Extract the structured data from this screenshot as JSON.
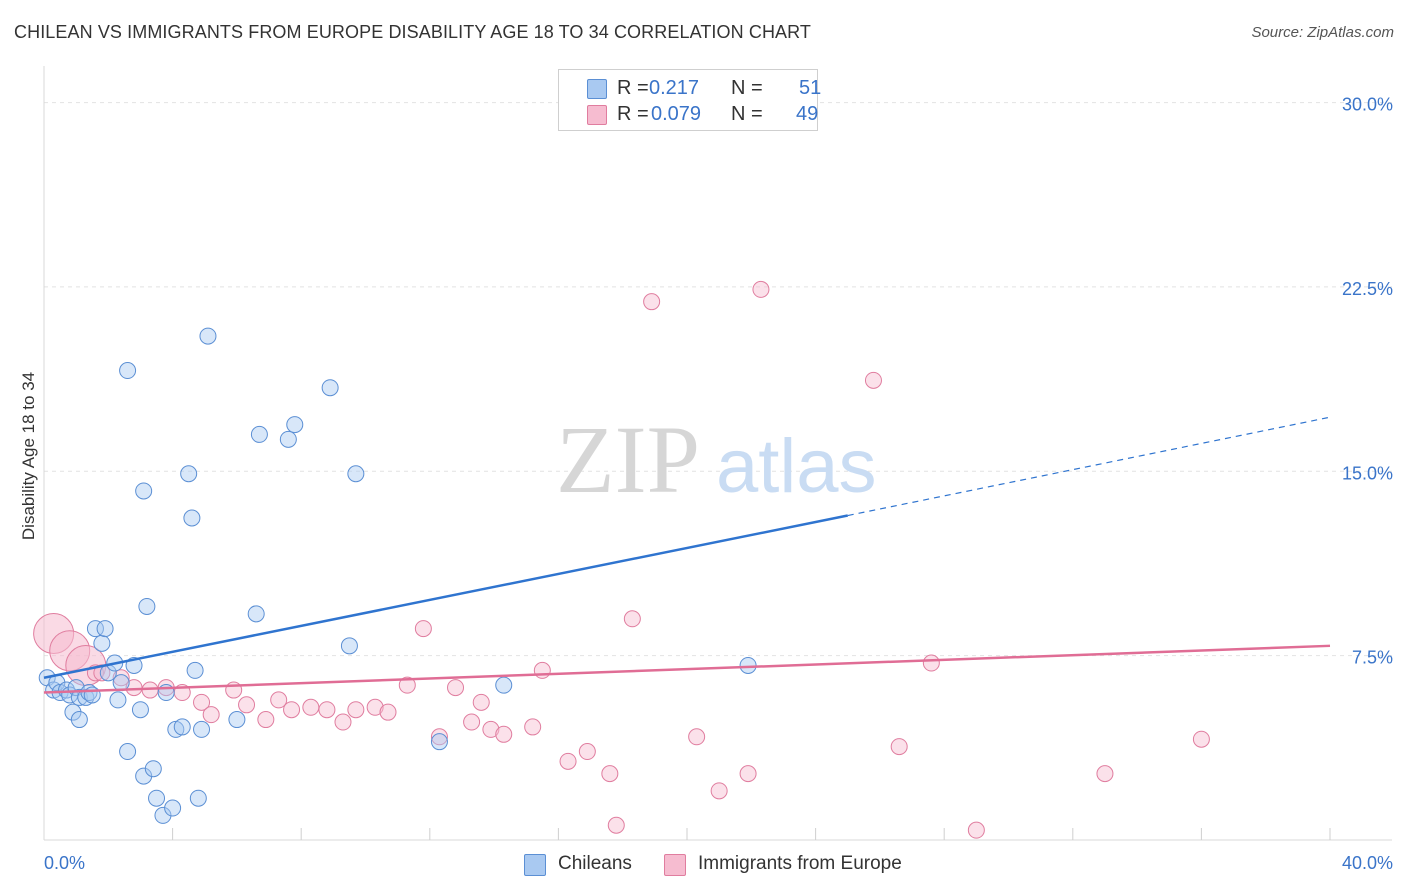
{
  "title": "CHILEAN VS IMMIGRANTS FROM EUROPE DISABILITY AGE 18 TO 34 CORRELATION CHART",
  "source": "Source: ZipAtlas.com",
  "watermark": {
    "zip": "ZIP",
    "atlas": "atlas"
  },
  "legend": {
    "series1": {
      "r_label": "R =",
      "r_value": "0.217",
      "n_label": "N =",
      "n_value": "51"
    },
    "series2": {
      "r_label": "R =",
      "r_value": "0.079",
      "n_label": "N =",
      "n_value": "49"
    }
  },
  "bottom_legend": {
    "series1": "Chileans",
    "series2": "Immigrants from Europe"
  },
  "colors": {
    "blue_fill": "#a9c9f1",
    "blue_stroke": "#5b8fd4",
    "blue_line": "#2f74cf",
    "pink_fill": "#f6bcd0",
    "pink_stroke": "#e07d9f",
    "pink_line": "#e06d95",
    "axis_label": "#3a74c9",
    "grid": "#e2e2e2"
  },
  "chart_data": {
    "type": "scatter",
    "title": "CHILEAN VS IMMIGRANTS FROM EUROPE DISABILITY AGE 18 TO 34 CORRELATION CHART",
    "xlabel": "",
    "ylabel": "Disability Age 18 to 34",
    "xlim": [
      0,
      40
    ],
    "ylim": [
      0,
      31
    ],
    "x_tick_labels": [
      "0.0%",
      "40.0%"
    ],
    "y_ticks": [
      7.5,
      15.0,
      22.5,
      30.0
    ],
    "y_tick_labels": [
      "7.5%",
      "15.0%",
      "22.5%",
      "30.0%"
    ],
    "grid": true,
    "series": [
      {
        "name": "Chileans",
        "r": 0.217,
        "n": 51,
        "trend": {
          "x0": 0,
          "y0": 6.6,
          "x1": 25,
          "y1": 13.2,
          "dash_to_x": 40,
          "dash_to_y": 17.2
        },
        "points": [
          [
            0.1,
            6.6
          ],
          [
            0.3,
            6.1
          ],
          [
            0.4,
            6.4
          ],
          [
            0.5,
            6.0
          ],
          [
            0.7,
            6.1
          ],
          [
            0.8,
            5.9
          ],
          [
            0.9,
            5.2
          ],
          [
            1.0,
            6.2
          ],
          [
            1.1,
            5.8
          ],
          [
            1.1,
            4.9
          ],
          [
            1.3,
            5.8
          ],
          [
            1.4,
            6.0
          ],
          [
            1.5,
            5.9
          ],
          [
            1.6,
            8.6
          ],
          [
            1.8,
            8.0
          ],
          [
            1.9,
            8.6
          ],
          [
            2.0,
            6.8
          ],
          [
            2.2,
            7.2
          ],
          [
            2.3,
            5.7
          ],
          [
            2.4,
            6.4
          ],
          [
            2.6,
            19.1
          ],
          [
            2.6,
            3.6
          ],
          [
            2.8,
            7.1
          ],
          [
            3.0,
            5.3
          ],
          [
            3.1,
            14.2
          ],
          [
            3.1,
            2.6
          ],
          [
            3.2,
            9.5
          ],
          [
            3.4,
            2.9
          ],
          [
            3.5,
            1.7
          ],
          [
            3.7,
            1.0
          ],
          [
            3.8,
            6.0
          ],
          [
            4.0,
            1.3
          ],
          [
            4.1,
            4.5
          ],
          [
            4.3,
            4.6
          ],
          [
            4.5,
            14.9
          ],
          [
            4.6,
            13.1
          ],
          [
            4.7,
            6.9
          ],
          [
            4.8,
            1.7
          ],
          [
            4.9,
            4.5
          ],
          [
            5.1,
            20.5
          ],
          [
            6.0,
            4.9
          ],
          [
            6.6,
            9.2
          ],
          [
            6.7,
            16.5
          ],
          [
            7.6,
            16.3
          ],
          [
            7.8,
            16.9
          ],
          [
            8.9,
            18.4
          ],
          [
            9.5,
            7.9
          ],
          [
            9.7,
            14.9
          ],
          [
            12.3,
            4.0
          ],
          [
            14.3,
            6.3
          ],
          [
            21.9,
            7.1
          ]
        ]
      },
      {
        "name": "Immigrants from Europe",
        "r": 0.079,
        "n": 49,
        "trend": {
          "x0": 0,
          "y0": 6.0,
          "x1": 40,
          "y1": 7.9
        },
        "points": [
          [
            0.3,
            8.4,
            "big"
          ],
          [
            0.8,
            7.7,
            "big"
          ],
          [
            1.3,
            7.1,
            "big"
          ],
          [
            1.6,
            6.8
          ],
          [
            1.8,
            6.8
          ],
          [
            2.4,
            6.6
          ],
          [
            2.8,
            6.2
          ],
          [
            3.3,
            6.1
          ],
          [
            3.8,
            6.2
          ],
          [
            4.3,
            6.0
          ],
          [
            4.9,
            5.6
          ],
          [
            5.2,
            5.1
          ],
          [
            5.9,
            6.1
          ],
          [
            6.3,
            5.5
          ],
          [
            6.9,
            4.9
          ],
          [
            7.3,
            5.7
          ],
          [
            7.7,
            5.3
          ],
          [
            8.3,
            5.4
          ],
          [
            8.8,
            5.3
          ],
          [
            9.3,
            4.8
          ],
          [
            9.7,
            5.3
          ],
          [
            10.3,
            5.4
          ],
          [
            10.7,
            5.2
          ],
          [
            11.3,
            6.3
          ],
          [
            11.8,
            8.6
          ],
          [
            12.3,
            4.2
          ],
          [
            12.8,
            6.2
          ],
          [
            13.3,
            4.8
          ],
          [
            13.6,
            5.6
          ],
          [
            13.9,
            4.5
          ],
          [
            14.3,
            4.3
          ],
          [
            15.2,
            4.6
          ],
          [
            15.5,
            6.9
          ],
          [
            16.3,
            3.2
          ],
          [
            16.9,
            3.6
          ],
          [
            17.6,
            2.7
          ],
          [
            17.8,
            0.6
          ],
          [
            18.3,
            9.0
          ],
          [
            18.9,
            21.9
          ],
          [
            20.3,
            4.2
          ],
          [
            21.0,
            2.0
          ],
          [
            21.9,
            2.7
          ],
          [
            22.3,
            22.4
          ],
          [
            25.8,
            18.7
          ],
          [
            26.6,
            3.8
          ],
          [
            27.6,
            7.2
          ],
          [
            29.0,
            0.4
          ],
          [
            33.0,
            2.7
          ],
          [
            36.0,
            4.1
          ]
        ]
      }
    ]
  }
}
